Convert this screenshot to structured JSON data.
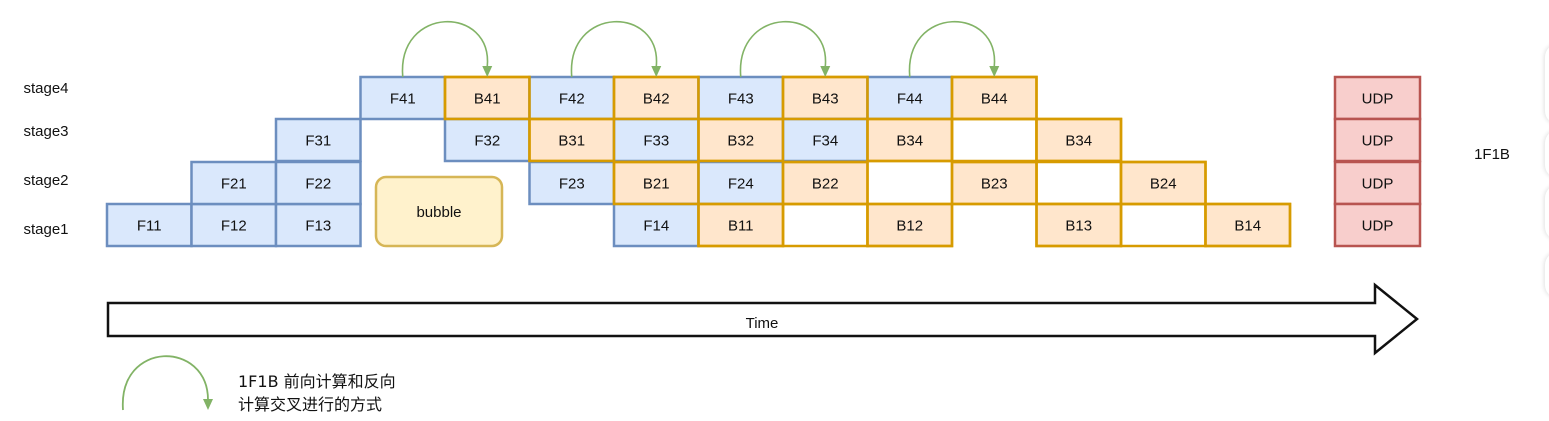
{
  "stages": [
    {
      "label": "stage4",
      "row": 0
    },
    {
      "label": "stage3",
      "row": 1
    },
    {
      "label": "stage2",
      "row": 2
    },
    {
      "label": "stage1",
      "row": 3
    }
  ],
  "cells": [
    {
      "label": "F11",
      "col": 0,
      "row": 3,
      "kind": "forward"
    },
    {
      "label": "F12",
      "col": 1,
      "row": 3,
      "kind": "forward"
    },
    {
      "label": "F13",
      "col": 2,
      "row": 3,
      "kind": "forward"
    },
    {
      "label": "F21",
      "col": 1,
      "row": 2,
      "kind": "forward"
    },
    {
      "label": "F22",
      "col": 2,
      "row": 2,
      "kind": "forward"
    },
    {
      "label": "F31",
      "col": 2,
      "row": 1,
      "kind": "forward"
    },
    {
      "label": "F41",
      "col": 3,
      "row": 0,
      "kind": "forward"
    },
    {
      "label": "B41",
      "col": 4,
      "row": 0,
      "kind": "backward"
    },
    {
      "label": "F32",
      "col": 4,
      "row": 1,
      "kind": "forward"
    },
    {
      "label": "F42",
      "col": 5,
      "row": 0,
      "kind": "forward"
    },
    {
      "label": "B31",
      "col": 5,
      "row": 1,
      "kind": "backward"
    },
    {
      "label": "F23",
      "col": 5,
      "row": 2,
      "kind": "forward"
    },
    {
      "label": "B42",
      "col": 6,
      "row": 0,
      "kind": "backward"
    },
    {
      "label": "F33",
      "col": 6,
      "row": 1,
      "kind": "forward"
    },
    {
      "label": "B21",
      "col": 6,
      "row": 2,
      "kind": "backward"
    },
    {
      "label": "F14",
      "col": 6,
      "row": 3,
      "kind": "forward"
    },
    {
      "label": "F43",
      "col": 7,
      "row": 0,
      "kind": "forward"
    },
    {
      "label": "B32",
      "col": 7,
      "row": 1,
      "kind": "backward"
    },
    {
      "label": "F24",
      "col": 7,
      "row": 2,
      "kind": "forward"
    },
    {
      "label": "B11",
      "col": 7,
      "row": 3,
      "kind": "backward"
    },
    {
      "label": "B43",
      "col": 8,
      "row": 0,
      "kind": "backward"
    },
    {
      "label": "F34",
      "col": 8,
      "row": 1,
      "kind": "forward"
    },
    {
      "label": "B22",
      "col": 8,
      "row": 2,
      "kind": "backward"
    },
    {
      "label": "F44",
      "col": 9,
      "row": 0,
      "kind": "forward"
    },
    {
      "label": "B34",
      "col": 9,
      "row": 1,
      "kind": "backward"
    },
    {
      "label": "B12",
      "col": 9,
      "row": 3,
      "kind": "backward"
    },
    {
      "label": "B44",
      "col": 10,
      "row": 0,
      "kind": "backward"
    },
    {
      "label": "",
      "col": 10,
      "row": 1,
      "kind": "empty"
    },
    {
      "label": "B23",
      "col": 10,
      "row": 2,
      "kind": "backward"
    },
    {
      "label": "B34",
      "col": 11,
      "row": 1,
      "kind": "backward"
    },
    {
      "label": "B13",
      "col": 11,
      "row": 3,
      "kind": "backward"
    },
    {
      "label": "B24",
      "col": 12,
      "row": 2,
      "kind": "backward"
    },
    {
      "label": "B14",
      "col": 13,
      "row": 3,
      "kind": "backward"
    }
  ],
  "extra_borders": [
    {
      "col": 8,
      "row": 3,
      "kind": "backward"
    },
    {
      "col": 11,
      "row": 2,
      "kind": "backward"
    },
    {
      "col": 12,
      "row": 3,
      "kind": "backward"
    }
  ],
  "arrows": [
    {
      "from_col": 3,
      "to_col": 4
    },
    {
      "from_col": 5,
      "to_col": 6
    },
    {
      "from_col": 7,
      "to_col": 8
    },
    {
      "from_col": 9,
      "to_col": 10
    }
  ],
  "udp": {
    "labels": [
      "UDP",
      "UDP",
      "UDP",
      "UDP"
    ]
  },
  "bubble": {
    "label": "bubble"
  },
  "time_arrow": {
    "label": "Time"
  },
  "side_label": "1F1B",
  "legend": {
    "line1": "1F1B 前向计算和反向",
    "line2": "计算交叉进行的方式"
  },
  "colors": {
    "forward_fill": "#dae8fc",
    "forward_stroke": "#6c8ebf",
    "backward_fill": "#ffe6cc",
    "backward_stroke": "#d79b00",
    "udp_fill": "#f8cecc",
    "udp_stroke": "#b85450",
    "bubble_fill": "#fff2cc",
    "bubble_stroke": "#d6b656",
    "arrow_green": "#82b366",
    "text": "#111111"
  }
}
